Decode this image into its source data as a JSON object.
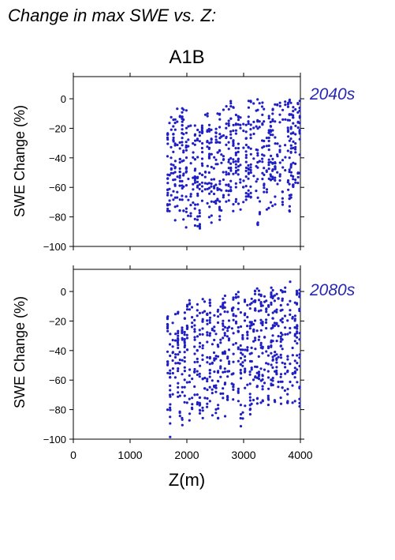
{
  "figure": {
    "heading": "Change in max SWE vs. Z:",
    "scenario": "A1B",
    "xlabel": "Z(m)",
    "colors": {
      "points": "#1f1fc4",
      "period_label": "#2727b5",
      "axes": "#000000"
    }
  },
  "chart_data": [
    {
      "type": "scatter",
      "panel_label": "2040s",
      "title": "A1B",
      "xlabel": "",
      "ylabel": "SWE Change (%)",
      "xlim": [
        0,
        4000
      ],
      "ylim": [
        -100,
        15
      ],
      "x_ticks": [
        "0",
        "1000",
        "2000",
        "3000",
        "4000"
      ],
      "y_ticks": [
        "0",
        "-20",
        "-40",
        "-60",
        "-80",
        "-100"
      ],
      "x_range_of_points": [
        1650,
        4000
      ],
      "y_range_of_points": [
        -95,
        10
      ],
      "point_color": "#1f1fc4"
    },
    {
      "type": "scatter",
      "panel_label": "2080s",
      "xlabel": "Z(m)",
      "ylabel": "SWE Change (%)",
      "xlim": [
        0,
        4000
      ],
      "ylim": [
        -100,
        15
      ],
      "x_ticks": [
        "0",
        "1000",
        "2000",
        "3000",
        "4000"
      ],
      "y_ticks": [
        "0",
        "-20",
        "-40",
        "-60",
        "-80",
        "-100"
      ],
      "x_range_of_points": [
        1650,
        4000
      ],
      "y_range_of_points": [
        -100,
        7
      ],
      "point_color": "#1f1fc4"
    }
  ]
}
